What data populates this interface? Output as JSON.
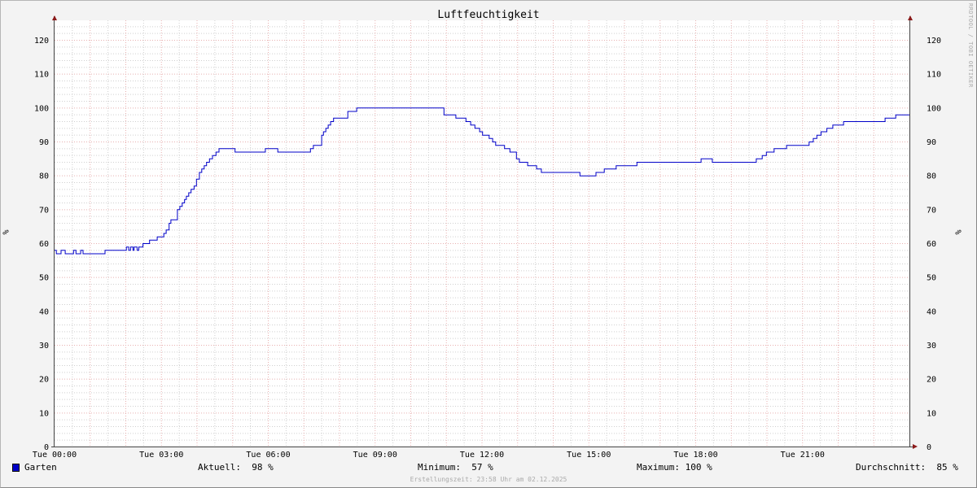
{
  "chart_data": {
    "type": "line",
    "title": "Luftfeuchtigkeit",
    "ylabel": "%",
    "ylim": [
      0,
      125
    ],
    "yticks": [
      0,
      10,
      20,
      30,
      40,
      50,
      60,
      70,
      80,
      90,
      100,
      110,
      120
    ],
    "xlim": [
      "00:00",
      "24:00"
    ],
    "xtick_labels": [
      "Tue 00:00",
      "Tue 03:00",
      "Tue 06:00",
      "Tue 09:00",
      "Tue 12:00",
      "Tue 15:00",
      "Tue 18:00",
      "Tue 21:00"
    ],
    "grid": true,
    "step": true,
    "series": [
      {
        "name": "Garten",
        "color": "#0000c8",
        "points": [
          [
            "00:00",
            58
          ],
          [
            "00:03",
            57
          ],
          [
            "00:11",
            58
          ],
          [
            "00:18",
            57
          ],
          [
            "00:32",
            58
          ],
          [
            "00:36",
            57
          ],
          [
            "00:44",
            58
          ],
          [
            "00:48",
            57
          ],
          [
            "01:25",
            58
          ],
          [
            "02:01",
            59
          ],
          [
            "02:05",
            58
          ],
          [
            "02:08",
            59
          ],
          [
            "02:12",
            58
          ],
          [
            "02:14",
            59
          ],
          [
            "02:19",
            58
          ],
          [
            "02:22",
            59
          ],
          [
            "02:29",
            60
          ],
          [
            "02:40",
            61
          ],
          [
            "02:53",
            62
          ],
          [
            "03:04",
            63
          ],
          [
            "03:08",
            64
          ],
          [
            "03:13",
            66
          ],
          [
            "03:16",
            67
          ],
          [
            "03:27",
            70
          ],
          [
            "03:31",
            71
          ],
          [
            "03:35",
            72
          ],
          [
            "03:39",
            73
          ],
          [
            "03:42",
            74
          ],
          [
            "03:46",
            75
          ],
          [
            "03:50",
            76
          ],
          [
            "03:55",
            77
          ],
          [
            "03:59",
            79
          ],
          [
            "04:04",
            81
          ],
          [
            "04:08",
            82
          ],
          [
            "04:12",
            83
          ],
          [
            "04:16",
            84
          ],
          [
            "04:21",
            85
          ],
          [
            "04:26",
            86
          ],
          [
            "04:32",
            87
          ],
          [
            "04:37",
            88
          ],
          [
            "05:04",
            87
          ],
          [
            "05:55",
            88
          ],
          [
            "06:16",
            87
          ],
          [
            "07:11",
            88
          ],
          [
            "07:16",
            89
          ],
          [
            "07:30",
            92
          ],
          [
            "07:33",
            93
          ],
          [
            "07:37",
            94
          ],
          [
            "07:41",
            95
          ],
          [
            "07:45",
            96
          ],
          [
            "07:50",
            97
          ],
          [
            "08:14",
            99
          ],
          [
            "08:29",
            100
          ],
          [
            "10:56",
            98
          ],
          [
            "11:16",
            97
          ],
          [
            "11:33",
            96
          ],
          [
            "11:41",
            95
          ],
          [
            "11:48",
            94
          ],
          [
            "11:56",
            93
          ],
          [
            "12:01",
            92
          ],
          [
            "12:12",
            91
          ],
          [
            "12:18",
            90
          ],
          [
            "12:23",
            89
          ],
          [
            "12:38",
            88
          ],
          [
            "12:47",
            87
          ],
          [
            "12:58",
            85
          ],
          [
            "13:03",
            84
          ],
          [
            "13:17",
            83
          ],
          [
            "13:32",
            82
          ],
          [
            "13:40",
            81
          ],
          [
            "14:45",
            80
          ],
          [
            "15:12",
            81
          ],
          [
            "15:26",
            82
          ],
          [
            "15:46",
            83
          ],
          [
            "16:21",
            84
          ],
          [
            "18:09",
            85
          ],
          [
            "18:28",
            84
          ],
          [
            "19:42",
            85
          ],
          [
            "19:52",
            86
          ],
          [
            "19:59",
            87
          ],
          [
            "20:12",
            88
          ],
          [
            "20:33",
            89
          ],
          [
            "21:11",
            90
          ],
          [
            "21:18",
            91
          ],
          [
            "21:24",
            92
          ],
          [
            "21:31",
            93
          ],
          [
            "21:41",
            94
          ],
          [
            "21:51",
            95
          ],
          [
            "22:09",
            96
          ],
          [
            "23:19",
            97
          ],
          [
            "23:37",
            98
          ],
          [
            "24:00",
            98
          ]
        ]
      }
    ]
  },
  "legend": {
    "series_label": "Garten",
    "current": "Aktuell:  98 %",
    "minimum": "Minimum:  57 %",
    "maximum": "Maximum: 100 %",
    "average": "Durchschnitt:  85 %"
  },
  "footer": "Erstellungszeit: 23:58 Uhr am 02.12.2025",
  "watermark": "RRDTOOL / TOBI OETIKER"
}
